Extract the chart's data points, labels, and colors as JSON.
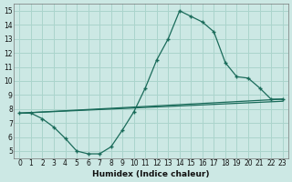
{
  "xlabel": "Humidex (Indice chaleur)",
  "bg_color": "#cce8e4",
  "grid_color": "#aad4cc",
  "line_color": "#1a6b5a",
  "xlim": [
    -0.5,
    23.5
  ],
  "ylim": [
    4.5,
    15.5
  ],
  "xticks": [
    0,
    1,
    2,
    3,
    4,
    5,
    6,
    7,
    8,
    9,
    10,
    11,
    12,
    13,
    14,
    15,
    16,
    17,
    18,
    19,
    20,
    21,
    22,
    23
  ],
  "yticks": [
    5,
    6,
    7,
    8,
    9,
    10,
    11,
    12,
    13,
    14,
    15
  ],
  "line1_x": [
    0,
    1,
    2,
    3,
    4,
    5,
    6,
    7,
    8,
    9,
    10,
    11,
    12,
    13,
    14,
    15,
    16,
    17,
    18,
    19,
    20,
    21,
    22,
    23
  ],
  "line1_y": [
    7.7,
    7.7,
    7.3,
    6.7,
    5.9,
    5.0,
    4.8,
    4.8,
    5.3,
    6.5,
    7.8,
    9.5,
    11.5,
    13.0,
    15.0,
    14.6,
    14.2,
    13.5,
    11.3,
    10.3,
    10.2,
    9.5,
    8.7,
    8.7
  ],
  "line2_x": [
    0,
    23
  ],
  "line2_y": [
    7.7,
    8.7
  ],
  "line3_x": [
    0,
    23
  ],
  "line3_y": [
    7.7,
    8.7
  ],
  "line4_x": [
    0,
    23
  ],
  "line4_y": [
    7.4,
    8.7
  ]
}
